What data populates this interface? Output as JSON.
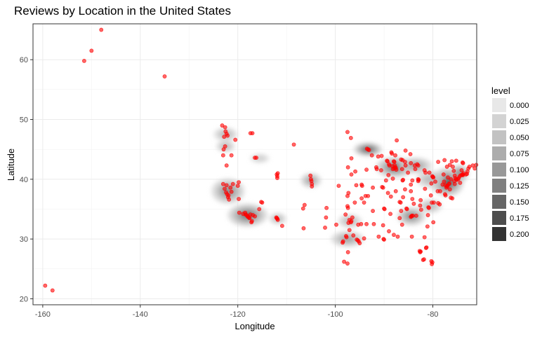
{
  "chart_data": {
    "type": "scatter",
    "title": "Reviews by Location in the United States",
    "xlabel": "Longitude",
    "ylabel": "Latitude",
    "xlim": [
      -162,
      -71
    ],
    "ylim": [
      19,
      66
    ],
    "xticks": [
      -160,
      -140,
      -120,
      -100,
      -80
    ],
    "yticks": [
      20,
      30,
      40,
      50,
      60
    ],
    "grid": true,
    "point_color": "#ff0000",
    "legend": {
      "title": "level",
      "position": "right",
      "levels": [
        "0.000",
        "0.025",
        "0.050",
        "0.075",
        "0.100",
        "0.125",
        "0.150",
        "0.175",
        "0.200"
      ],
      "colors": [
        "#e8e8e8",
        "#d3d3d3",
        "#c2c2c2",
        "#acacac",
        "#989898",
        "#808080",
        "#666666",
        "#4d4d4d",
        "#333333"
      ]
    },
    "density_regions": [
      {
        "x": -122.0,
        "y": 38.0,
        "rx": 3.5,
        "ry": 2.2,
        "level": 4
      },
      {
        "x": -118.0,
        "y": 34.0,
        "rx": 4.2,
        "ry": 2.0,
        "level": 5
      },
      {
        "x": -122.5,
        "y": 47.5,
        "rx": 2.5,
        "ry": 1.2,
        "level": 2
      },
      {
        "x": -122.5,
        "y": 45.5,
        "rx": 2.0,
        "ry": 1.0,
        "level": 2
      },
      {
        "x": -115.5,
        "y": 43.5,
        "rx": 2.0,
        "ry": 0.8,
        "level": 1
      },
      {
        "x": -111.8,
        "y": 33.4,
        "rx": 1.8,
        "ry": 1.0,
        "level": 2
      },
      {
        "x": -105.0,
        "y": 39.8,
        "rx": 2.2,
        "ry": 1.3,
        "level": 3
      },
      {
        "x": -93.3,
        "y": 45.0,
        "rx": 3.0,
        "ry": 1.2,
        "level": 6
      },
      {
        "x": -97.0,
        "y": 33.0,
        "rx": 2.5,
        "ry": 1.2,
        "level": 2
      },
      {
        "x": -97.5,
        "y": 30.0,
        "rx": 3.5,
        "ry": 1.4,
        "level": 3
      },
      {
        "x": -87.8,
        "y": 42.0,
        "rx": 4.0,
        "ry": 1.8,
        "level": 5
      },
      {
        "x": -83.5,
        "y": 42.3,
        "rx": 3.5,
        "ry": 1.4,
        "level": 3
      },
      {
        "x": -84.4,
        "y": 33.8,
        "rx": 3.0,
        "ry": 1.6,
        "level": 4
      },
      {
        "x": -80.5,
        "y": 35.5,
        "rx": 2.5,
        "ry": 1.2,
        "level": 2
      },
      {
        "x": -77.0,
        "y": 39.5,
        "rx": 3.5,
        "ry": 2.5,
        "level": 6
      },
      {
        "x": -74.5,
        "y": 41.0,
        "rx": 2.0,
        "ry": 1.5,
        "level": 4
      },
      {
        "x": -80.5,
        "y": 40.0,
        "rx": 3.0,
        "ry": 1.5,
        "level": 2
      }
    ],
    "points": [
      [
        -148,
        65.0
      ],
      [
        -150,
        61.5
      ],
      [
        -151.5,
        59.8
      ],
      [
        -135,
        57.2
      ],
      [
        -159.5,
        22.2
      ],
      [
        -158,
        21.4
      ],
      [
        -123.2,
        49.0
      ],
      [
        -122.6,
        48.7
      ],
      [
        -122.5,
        48.0
      ],
      [
        -122.3,
        47.6
      ],
      [
        -122.1,
        47.3
      ],
      [
        -122.8,
        47.1
      ],
      [
        -120.5,
        46.6
      ],
      [
        -117.4,
        47.7
      ],
      [
        -117.0,
        47.7
      ],
      [
        -122.6,
        45.5
      ],
      [
        -122.9,
        45.0
      ],
      [
        -123.0,
        44.0
      ],
      [
        -121.3,
        44.0
      ],
      [
        -116.2,
        43.6
      ],
      [
        -116.5,
        43.6
      ],
      [
        -122.3,
        42.3
      ],
      [
        -122.4,
        37.8
      ],
      [
        -122.2,
        37.5
      ],
      [
        -121.9,
        37.3
      ],
      [
        -121.5,
        38.6
      ],
      [
        -122.7,
        38.4
      ],
      [
        -121.3,
        37.9
      ],
      [
        -121.8,
        36.6
      ],
      [
        -119.8,
        36.7
      ],
      [
        -122.0,
        37.0
      ],
      [
        -122.3,
        39.0
      ],
      [
        -123.0,
        39.2
      ],
      [
        -121.0,
        39.2
      ],
      [
        -119.8,
        39.5
      ],
      [
        -120.0,
        38.9
      ],
      [
        -118.2,
        34.0
      ],
      [
        -118.4,
        34.1
      ],
      [
        -118.0,
        33.8
      ],
      [
        -117.9,
        33.7
      ],
      [
        -117.2,
        32.8
      ],
      [
        -117.1,
        33.0
      ],
      [
        -116.5,
        33.8
      ],
      [
        -117.4,
        34.1
      ],
      [
        -119.7,
        34.4
      ],
      [
        -118.5,
        34.4
      ],
      [
        -117.7,
        33.6
      ],
      [
        -116.9,
        34.0
      ],
      [
        -117.6,
        33.5
      ],
      [
        -118.9,
        34.2
      ],
      [
        -115.6,
        35.0
      ],
      [
        -115.2,
        36.2
      ],
      [
        -115.0,
        36.1
      ],
      [
        -112.0,
        33.5
      ],
      [
        -111.9,
        33.4
      ],
      [
        -111.8,
        33.2
      ],
      [
        -112.1,
        33.6
      ],
      [
        -110.9,
        32.2
      ],
      [
        -112.0,
        40.8
      ],
      [
        -111.9,
        40.5
      ],
      [
        -111.8,
        41.0
      ],
      [
        -111.9,
        40.2
      ],
      [
        -108.5,
        45.8
      ],
      [
        -106.6,
        35.1
      ],
      [
        -106.3,
        35.7
      ],
      [
        -104.9,
        39.7
      ],
      [
        -105.0,
        40.0
      ],
      [
        -105.1,
        40.6
      ],
      [
        -104.8,
        38.8
      ],
      [
        -104.8,
        39.2
      ],
      [
        -97.5,
        47.9
      ],
      [
        -96.8,
        46.9
      ],
      [
        -93.3,
        45.0
      ],
      [
        -93.1,
        44.9
      ],
      [
        -93.5,
        45.1
      ],
      [
        -92.5,
        44.0
      ],
      [
        -96.7,
        43.5
      ],
      [
        -97.4,
        42.0
      ],
      [
        -95.9,
        41.3
      ],
      [
        -96.7,
        40.8
      ],
      [
        -93.6,
        41.6
      ],
      [
        -91.5,
        41.7
      ],
      [
        -90.6,
        41.5
      ],
      [
        -91.6,
        42.0
      ],
      [
        -94.6,
        39.1
      ],
      [
        -94.5,
        38.9
      ],
      [
        -95.7,
        39.0
      ],
      [
        -97.3,
        37.7
      ],
      [
        -93.3,
        37.2
      ],
      [
        -90.2,
        38.6
      ],
      [
        -90.4,
        38.7
      ],
      [
        -97.5,
        35.5
      ],
      [
        -96.0,
        36.1
      ],
      [
        -97.4,
        35.2
      ],
      [
        -92.3,
        34.7
      ],
      [
        -94.1,
        36.1
      ],
      [
        -96.8,
        32.8
      ],
      [
        -97.3,
        32.7
      ],
      [
        -96.7,
        33.0
      ],
      [
        -97.1,
        33.2
      ],
      [
        -96.5,
        33.6
      ],
      [
        -95.4,
        29.8
      ],
      [
        -95.6,
        29.9
      ],
      [
        -95.2,
        29.6
      ],
      [
        -97.7,
        30.3
      ],
      [
        -97.8,
        30.5
      ],
      [
        -98.5,
        29.4
      ],
      [
        -98.4,
        29.6
      ],
      [
        -94.1,
        30.1
      ],
      [
        -97.4,
        27.8
      ],
      [
        -90.1,
        30.0
      ],
      [
        -91.1,
        30.4
      ],
      [
        -90.0,
        29.9
      ],
      [
        -90.0,
        35.1
      ],
      [
        -89.9,
        35.0
      ],
      [
        -86.8,
        36.2
      ],
      [
        -86.6,
        36.1
      ],
      [
        -85.3,
        35.0
      ],
      [
        -83.9,
        35.9
      ],
      [
        -86.8,
        33.5
      ],
      [
        -86.3,
        32.4
      ],
      [
        -88.0,
        30.7
      ],
      [
        -90.2,
        32.3
      ],
      [
        -89.0,
        31.3
      ],
      [
        -88.7,
        34.2
      ],
      [
        -89.4,
        43.1
      ],
      [
        -89.3,
        43.0
      ],
      [
        -88.0,
        43.0
      ],
      [
        -87.9,
        42.9
      ],
      [
        -87.7,
        42.0
      ],
      [
        -87.6,
        41.9
      ],
      [
        -87.9,
        41.8
      ],
      [
        -88.2,
        41.7
      ],
      [
        -88.3,
        42.2
      ],
      [
        -87.8,
        42.3
      ],
      [
        -88.9,
        42.3
      ],
      [
        -89.1,
        40.7
      ],
      [
        -88.2,
        40.1
      ],
      [
        -89.6,
        39.8
      ],
      [
        -87.5,
        41.6
      ],
      [
        -86.3,
        41.7
      ],
      [
        -86.2,
        39.8
      ],
      [
        -86.1,
        39.9
      ],
      [
        -85.1,
        41.1
      ],
      [
        -87.6,
        38.0
      ],
      [
        -85.7,
        38.3
      ],
      [
        -84.5,
        38.0
      ],
      [
        -84.5,
        39.1
      ],
      [
        -84.2,
        39.8
      ],
      [
        -83.0,
        40.0
      ],
      [
        -82.9,
        39.9
      ],
      [
        -81.7,
        41.5
      ],
      [
        -81.5,
        41.1
      ],
      [
        -80.7,
        41.1
      ],
      [
        -83.6,
        41.7
      ],
      [
        -83.0,
        42.3
      ],
      [
        -83.2,
        42.5
      ],
      [
        -83.7,
        42.3
      ],
      [
        -84.5,
        42.7
      ],
      [
        -85.6,
        42.3
      ],
      [
        -85.7,
        42.9
      ],
      [
        -86.2,
        43.2
      ],
      [
        -84.6,
        44.2
      ],
      [
        -85.6,
        44.8
      ],
      [
        -87.4,
        46.5
      ],
      [
        -88.5,
        44.5
      ],
      [
        -90.5,
        43.9
      ],
      [
        -91.2,
        43.8
      ],
      [
        -89.0,
        42.5
      ],
      [
        -88.4,
        44.3
      ],
      [
        -87.7,
        44.0
      ],
      [
        -86.5,
        43.3
      ],
      [
        -80.0,
        40.4
      ],
      [
        -80.1,
        40.5
      ],
      [
        -79.9,
        40.3
      ],
      [
        -78.9,
        42.9
      ],
      [
        -77.6,
        43.2
      ],
      [
        -76.1,
        43.0
      ],
      [
        -75.2,
        43.1
      ],
      [
        -73.8,
        42.7
      ],
      [
        -73.9,
        42.8
      ],
      [
        -76.5,
        42.4
      ],
      [
        -77.1,
        42.1
      ],
      [
        -75.9,
        42.1
      ],
      [
        -74.0,
        40.7
      ],
      [
        -73.9,
        40.8
      ],
      [
        -73.8,
        40.7
      ],
      [
        -74.2,
        40.7
      ],
      [
        -74.5,
        40.5
      ],
      [
        -74.7,
        40.2
      ],
      [
        -75.2,
        40.0
      ],
      [
        -75.1,
        39.9
      ],
      [
        -75.5,
        40.6
      ],
      [
        -75.4,
        40.2
      ],
      [
        -76.3,
        40.0
      ],
      [
        -76.9,
        40.3
      ],
      [
        -77.7,
        39.6
      ],
      [
        -76.6,
        39.3
      ],
      [
        -76.7,
        39.2
      ],
      [
        -77.0,
        38.9
      ],
      [
        -77.1,
        38.8
      ],
      [
        -77.4,
        39.0
      ],
      [
        -77.2,
        38.6
      ],
      [
        -77.5,
        37.5
      ],
      [
        -76.3,
        36.9
      ],
      [
        -76.0,
        36.8
      ],
      [
        -78.6,
        35.8
      ],
      [
        -78.9,
        36.0
      ],
      [
        -79.8,
        36.1
      ],
      [
        -80.2,
        36.1
      ],
      [
        -80.8,
        35.2
      ],
      [
        -80.9,
        35.3
      ],
      [
        -81.0,
        34.0
      ],
      [
        -79.9,
        32.8
      ],
      [
        -82.4,
        34.9
      ],
      [
        -81.1,
        32.1
      ],
      [
        -84.4,
        33.8
      ],
      [
        -84.3,
        33.9
      ],
      [
        -84.5,
        33.7
      ],
      [
        -84.1,
        33.9
      ],
      [
        -83.4,
        33.9
      ],
      [
        -81.7,
        30.3
      ],
      [
        -81.4,
        28.5
      ],
      [
        -81.3,
        28.6
      ],
      [
        -82.5,
        27.9
      ],
      [
        -82.6,
        27.8
      ],
      [
        -82.7,
        28.0
      ],
      [
        -80.1,
        26.1
      ],
      [
        -80.2,
        25.8
      ],
      [
        -80.3,
        26.3
      ],
      [
        -81.8,
        26.6
      ],
      [
        -82.0,
        26.5
      ],
      [
        -84.3,
        30.4
      ],
      [
        -87.2,
        30.4
      ],
      [
        -86.5,
        34.7
      ],
      [
        -85.4,
        35.1
      ],
      [
        -82.6,
        35.6
      ],
      [
        -80.4,
        37.3
      ],
      [
        -81.6,
        38.4
      ],
      [
        -79.0,
        38.0
      ],
      [
        -78.5,
        38.0
      ],
      [
        -78.0,
        39.1
      ],
      [
        -79.5,
        39.6
      ],
      [
        -77.4,
        37.3
      ],
      [
        -76.5,
        38.3
      ],
      [
        -75.5,
        39.2
      ],
      [
        -75.6,
        39.7
      ],
      [
        -74.4,
        39.4
      ],
      [
        -74.8,
        40.0
      ],
      [
        -73.2,
        40.8
      ],
      [
        -72.9,
        41.3
      ],
      [
        -72.7,
        41.8
      ],
      [
        -72.5,
        42.1
      ],
      [
        -71.8,
        42.3
      ],
      [
        -71.1,
        42.4
      ],
      [
        -71.4,
        41.8
      ],
      [
        -73.0,
        40.9
      ],
      [
        -74.1,
        41.5
      ],
      [
        -73.7,
        41.0
      ],
      [
        -75.7,
        41.4
      ],
      [
        -77.8,
        40.8
      ],
      [
        -80.3,
        39.3
      ],
      [
        -82.5,
        36.5
      ],
      [
        -83.0,
        39.7
      ],
      [
        -84.2,
        36.7
      ],
      [
        -86.1,
        37.0
      ],
      [
        -88.6,
        37.1
      ],
      [
        -89.2,
        37.7
      ],
      [
        -92.3,
        38.6
      ],
      [
        -93.6,
        32.5
      ],
      [
        -92.1,
        32.5
      ],
      [
        -93.8,
        37.2
      ],
      [
        -94.6,
        36.8
      ],
      [
        -97.5,
        37.2
      ],
      [
        -99.3,
        38.9
      ],
      [
        -99.8,
        32.4
      ],
      [
        -101.8,
        35.2
      ],
      [
        -101.9,
        33.6
      ],
      [
        -102.1,
        31.9
      ],
      [
        -106.5,
        31.8
      ],
      [
        -96.3,
        30.6
      ],
      [
        -97.1,
        31.5
      ],
      [
        -97.9,
        34.1
      ],
      [
        -95.3,
        32.4
      ],
      [
        -94.7,
        32.5
      ],
      [
        -95.0,
        29.3
      ],
      [
        -98.2,
        26.2
      ],
      [
        -97.5,
        25.9
      ]
    ]
  }
}
